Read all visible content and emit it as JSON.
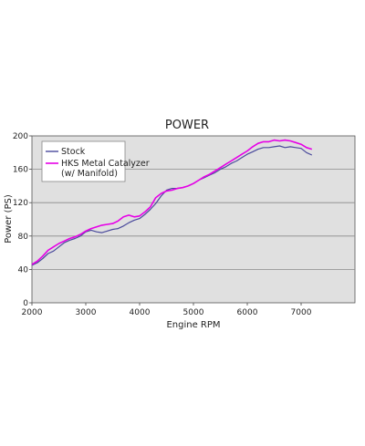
{
  "chart_data": {
    "type": "line",
    "title": "POWER",
    "xlabel": "Engine RPM",
    "ylabel": "Power (PS)",
    "xlim": [
      2000,
      8000
    ],
    "ylim": [
      0,
      200
    ],
    "xticks": [
      2000,
      3000,
      4000,
      5000,
      6000,
      7000
    ],
    "yticks": [
      0,
      40,
      80,
      120,
      160,
      200
    ],
    "grid": "horizontal",
    "legend_position": "top-left",
    "series": [
      {
        "name": "Stock",
        "color": "#4a4a9c",
        "x": [
          2000,
          2100,
          2200,
          2300,
          2400,
          2500,
          2600,
          2700,
          2800,
          2900,
          3000,
          3100,
          3200,
          3300,
          3400,
          3500,
          3600,
          3700,
          3800,
          3900,
          4000,
          4100,
          4200,
          4300,
          4400,
          4500,
          4600,
          4700,
          4800,
          4900,
          5000,
          5100,
          5200,
          5300,
          5400,
          5500,
          5600,
          5700,
          5800,
          5900,
          6000,
          6100,
          6200,
          6300,
          6400,
          6500,
          6600,
          6700,
          6800,
          6900,
          7000,
          7100,
          7200
        ],
        "values": [
          45,
          48,
          53,
          59,
          62,
          67,
          72,
          75,
          77,
          80,
          85,
          87,
          85,
          84,
          86,
          88,
          89,
          92,
          96,
          99,
          101,
          106,
          112,
          119,
          128,
          135,
          137,
          137,
          138,
          140,
          143,
          147,
          150,
          153,
          156,
          160,
          163,
          167,
          170,
          174,
          178,
          181,
          184,
          186,
          186,
          187,
          188,
          186,
          187,
          186,
          185,
          180,
          177
        ]
      },
      {
        "name": "HKS Metal Catalyzer (w/ Manifold)",
        "legend_lines": [
          "HKS Metal Catalyzer",
          "(w/ Manifold)"
        ],
        "color": "#e600e6",
        "x": [
          2000,
          2100,
          2200,
          2300,
          2400,
          2500,
          2600,
          2700,
          2800,
          2900,
          3000,
          3100,
          3200,
          3300,
          3400,
          3500,
          3600,
          3700,
          3800,
          3900,
          4000,
          4100,
          4200,
          4300,
          4400,
          4500,
          4600,
          4700,
          4800,
          4900,
          5000,
          5100,
          5200,
          5300,
          5400,
          5500,
          5600,
          5700,
          5800,
          5900,
          6000,
          6100,
          6200,
          6300,
          6400,
          6500,
          6600,
          6700,
          6800,
          6900,
          7000,
          7100,
          7200
        ],
        "values": [
          46,
          50,
          56,
          63,
          67,
          71,
          74,
          77,
          79,
          82,
          86,
          89,
          91,
          93,
          94,
          95,
          98,
          103,
          105,
          103,
          104,
          109,
          115,
          126,
          131,
          134,
          135,
          137,
          138,
          140,
          143,
          147,
          151,
          154,
          158,
          162,
          166,
          170,
          174,
          178,
          182,
          187,
          191,
          193,
          193,
          195,
          194,
          195,
          194,
          192,
          190,
          186,
          184
        ]
      }
    ]
  }
}
